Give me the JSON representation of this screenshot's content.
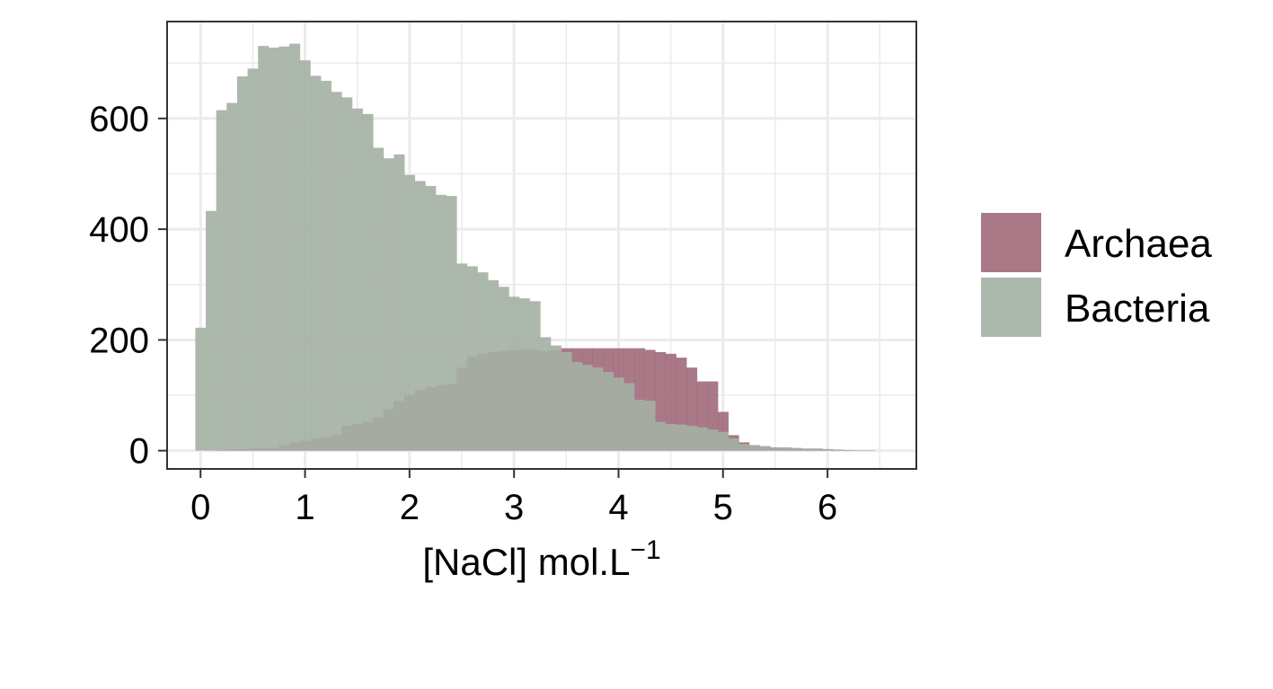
{
  "chart_data": {
    "type": "histogram",
    "xlabel": "[NaCl] mol.L",
    "xlabel_superscript": "−1",
    "ylabel": "",
    "xlim": [
      -0.32,
      6.85
    ],
    "ylim": [
      -33,
      775
    ],
    "x_ticks": [
      0,
      1,
      2,
      3,
      4,
      5,
      6
    ],
    "y_ticks": [
      0,
      200,
      400,
      600
    ],
    "x_minor_gridlines": [
      0.5,
      1.5,
      2.5,
      3.5,
      4.5,
      5.5,
      6.5
    ],
    "y_minor_gridlines": [
      100,
      300,
      500,
      700
    ],
    "grid": true,
    "theme": "bw",
    "bin_width": 0.1,
    "legend_position": "right",
    "series": [
      {
        "name": "Bacteria",
        "color": "#a4b0a3",
        "bin_starts": [
          -0.05,
          0.05,
          0.15,
          0.25,
          0.35,
          0.45,
          0.55,
          0.65,
          0.75,
          0.85,
          0.95,
          1.05,
          1.15,
          1.25,
          1.35,
          1.45,
          1.55,
          1.65,
          1.75,
          1.85,
          1.95,
          2.05,
          2.15,
          2.25,
          2.35,
          2.45,
          2.55,
          2.65,
          2.75,
          2.85,
          2.95,
          3.05,
          3.15,
          3.25,
          3.35,
          3.45,
          3.55,
          3.65,
          3.75,
          3.85,
          3.95,
          4.05,
          4.15,
          4.25,
          4.35,
          4.45,
          4.55,
          4.65,
          4.75,
          4.85,
          4.95,
          5.05,
          5.15,
          5.25,
          5.35,
          5.45,
          5.55,
          5.65,
          5.75,
          5.85,
          5.95,
          6.05,
          6.15,
          6.25,
          6.35,
          6.45
        ],
        "values": [
          222,
          433,
          615,
          628,
          676,
          690,
          731,
          728,
          730,
          735,
          705,
          677,
          668,
          648,
          638,
          618,
          608,
          547,
          528,
          535,
          498,
          487,
          478,
          462,
          460,
          338,
          333,
          322,
          308,
          296,
          278,
          275,
          270,
          205,
          190,
          178,
          160,
          155,
          150,
          142,
          132,
          122,
          92,
          90,
          52,
          48,
          47,
          45,
          42,
          38,
          34,
          22,
          12,
          10,
          8,
          6,
          6,
          5,
          4,
          4,
          3,
          2,
          1,
          1,
          1,
          0
        ],
        "opacity": 0.9
      },
      {
        "name": "Archaea",
        "color": "#9a6172",
        "bin_starts": [
          -0.05,
          0.05,
          0.15,
          0.25,
          0.35,
          0.45,
          0.55,
          0.65,
          0.75,
          0.85,
          0.95,
          1.05,
          1.15,
          1.25,
          1.35,
          1.45,
          1.55,
          1.65,
          1.75,
          1.85,
          1.95,
          2.05,
          2.15,
          2.25,
          2.35,
          2.45,
          2.55,
          2.65,
          2.75,
          2.85,
          2.95,
          3.05,
          3.15,
          3.25,
          3.35,
          3.45,
          3.55,
          3.65,
          3.75,
          3.85,
          3.95,
          4.05,
          4.15,
          4.25,
          4.35,
          4.45,
          4.55,
          4.65,
          4.75,
          4.85,
          4.95,
          5.05,
          5.15,
          5.25,
          5.35,
          5.45,
          5.55,
          5.65,
          5.75,
          5.85,
          5.95,
          6.05,
          6.15,
          6.25,
          6.35,
          6.45
        ],
        "values": [
          0,
          0,
          1,
          2,
          3,
          4,
          5,
          5,
          10,
          15,
          18,
          22,
          25,
          28,
          45,
          48,
          52,
          60,
          75,
          90,
          100,
          110,
          115,
          118,
          120,
          150,
          170,
          175,
          178,
          180,
          182,
          183,
          182,
          180,
          182,
          185,
          185,
          185,
          185,
          185,
          185,
          185,
          185,
          182,
          178,
          175,
          168,
          150,
          125,
          125,
          70,
          28,
          15,
          10,
          8,
          6,
          5,
          4,
          3,
          3,
          2,
          1,
          1,
          0,
          0,
          0
        ],
        "opacity": 0.85
      }
    ]
  }
}
